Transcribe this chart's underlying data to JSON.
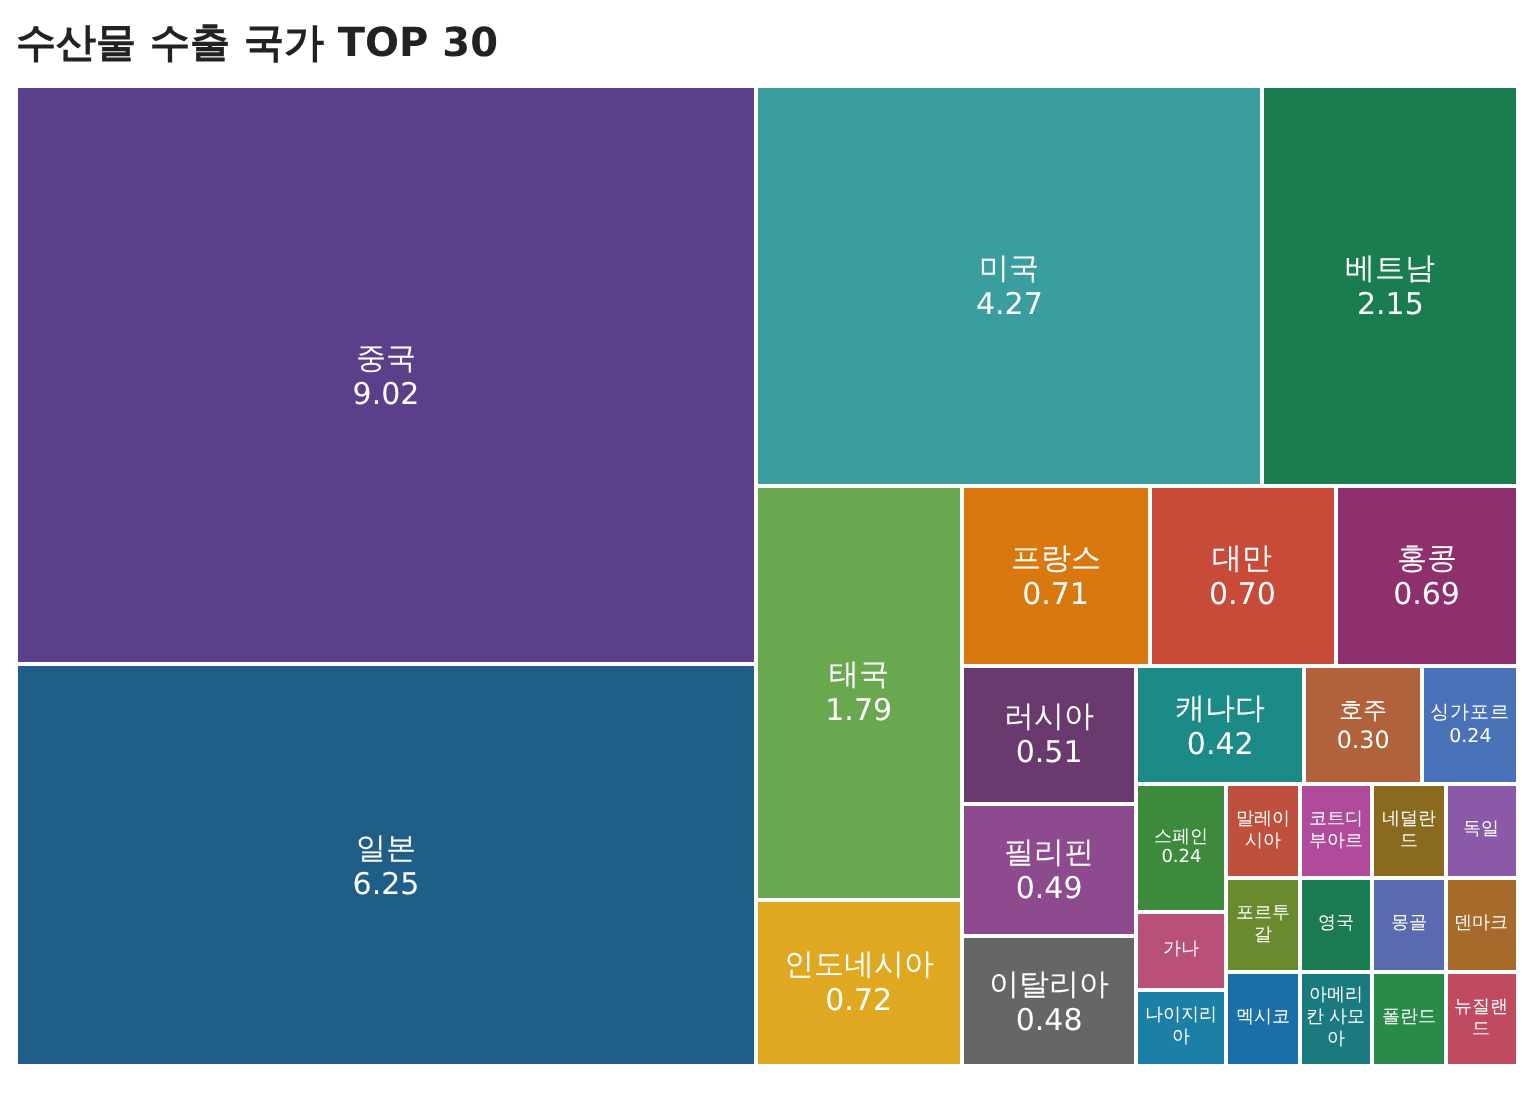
{
  "chart_data": {
    "type": "other",
    "title": "수산물 수출 국가 TOP 30",
    "categories": [
      "중국",
      "일본",
      "미국",
      "베트남",
      "태국",
      "인도네시아",
      "프랑스",
      "대만",
      "홍콩",
      "러시아",
      "필리핀",
      "이탈리아",
      "캐나다",
      "호주",
      "싱가포르",
      "스페인",
      "가나",
      "나이지리아",
      "말레이시아",
      "포르투갈",
      "멕시코",
      "코트디부아르",
      "네덜란드",
      "독일",
      "영국",
      "아메리칸 사모아",
      "몽골",
      "덴마크",
      "폴란드",
      "뉴질랜드"
    ],
    "values": [
      9.02,
      6.25,
      4.27,
      2.15,
      1.79,
      0.72,
      0.71,
      0.7,
      0.69,
      0.51,
      0.49,
      0.48,
      0.42,
      0.3,
      0.24,
      0.24,
      null,
      null,
      null,
      null,
      null,
      null,
      null,
      null,
      null,
      null,
      null,
      null,
      null,
      null
    ],
    "value_labels": [
      "9.02",
      "6.25",
      "4.27",
      "2.15",
      "1.79",
      "0.72",
      "0.71",
      "0.70",
      "0.69",
      "0.51",
      "0.49",
      "0.48",
      "0.42",
      "0.30",
      "0.24",
      "0.24",
      null,
      null,
      null,
      null,
      null,
      null,
      null,
      null,
      null,
      null,
      null,
      null,
      null,
      null
    ],
    "colors": [
      "#5b3f8a",
      "#1f5e86",
      "#3a9e9f",
      "#1a7d4f",
      "#6aa84f",
      "#e0a820",
      "#d9780f",
      "#c84b3a",
      "#8e2f6e",
      "#6a3a6e",
      "#8e4a8e",
      "#666666",
      "#1c8a86",
      "#b0623a",
      "#4a72b8",
      "#3d8a3d",
      "#b8507a",
      "#1c7fa6",
      "#c0503e",
      "#6a8a2e",
      "#1a6fa8",
      "#b04a9a",
      "#8a6a1e",
      "#8a5aa8",
      "#1a7a50",
      "#1a7a80",
      "#5a6ab0",
      "#a86a2a",
      "#2a8a4a",
      "#c04a60"
    ]
  }
}
